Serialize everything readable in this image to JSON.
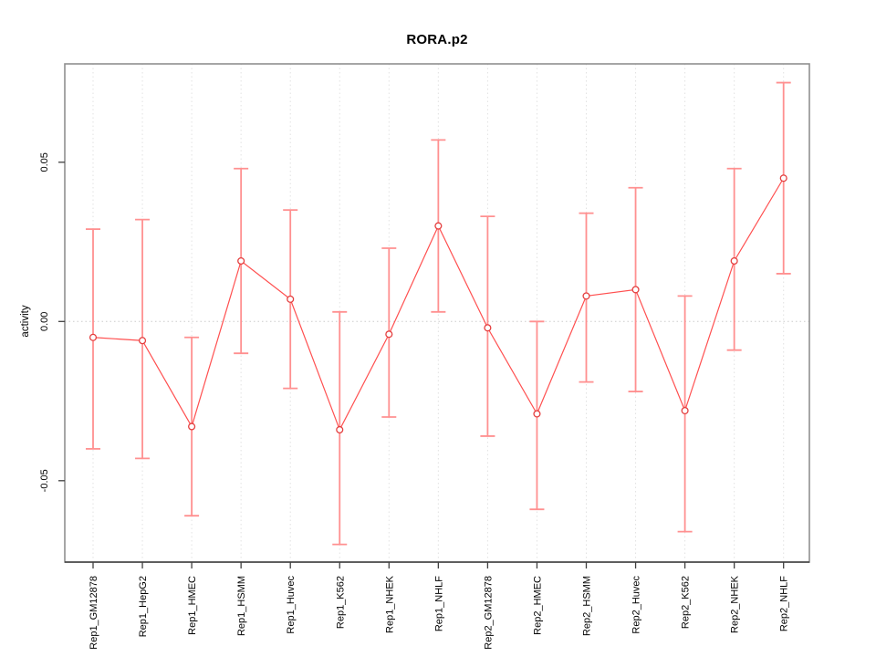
{
  "chart_data": {
    "type": "line",
    "subtype": "errorbar",
    "title": "RORA.p2",
    "xlabel": "",
    "ylabel": "activity",
    "categories": [
      "Rep1_GM12878",
      "Rep1_HepG2",
      "Rep1_HMEC",
      "Rep1_HSMM",
      "Rep1_Huvec",
      "Rep1_K562",
      "Rep1_NHEK",
      "Rep1_NHLF",
      "Rep2_GM12878",
      "Rep2_HMEC",
      "Rep2_HSMM",
      "Rep2_Huvec",
      "Rep2_K562",
      "Rep2_NHEK",
      "Rep2_NHLF"
    ],
    "series": [
      {
        "name": "activity",
        "values": [
          -0.005,
          -0.006,
          -0.033,
          0.019,
          0.007,
          -0.034,
          -0.004,
          0.03,
          -0.002,
          -0.029,
          0.008,
          0.01,
          -0.028,
          0.019,
          0.045
        ],
        "upper": [
          0.029,
          0.032,
          -0.005,
          0.048,
          0.035,
          0.003,
          0.023,
          0.057,
          0.033,
          0.0,
          0.034,
          0.042,
          0.008,
          0.048,
          0.075
        ],
        "lower": [
          -0.04,
          -0.043,
          -0.061,
          -0.01,
          -0.021,
          -0.07,
          -0.03,
          0.003,
          -0.036,
          -0.059,
          -0.019,
          -0.022,
          -0.066,
          -0.009,
          0.015
        ]
      }
    ],
    "yticks": {
      "values": [
        0.05,
        0.0,
        -0.05
      ],
      "labels": [
        "0.05",
        "0.00",
        "-0.05"
      ]
    },
    "ylim": [
      -0.0756,
      0.0809
    ],
    "grid": {
      "vertical_dotted_per_category": true,
      "horizontal_dotted_at_zero": true
    },
    "legend": "none",
    "colors": {
      "background": "#ffffff",
      "box_border": "#909090",
      "axis_line": "#404040",
      "tick_mark": "#404040",
      "tick_text": "#000000",
      "grid_vertical": "#e2e2e2",
      "grid_zero_line": "#cccccc",
      "error_bar": "#ff9090",
      "series_line": "#ff5050",
      "point_stroke": "#e43f3f",
      "point_fill": "#ffffff"
    }
  }
}
